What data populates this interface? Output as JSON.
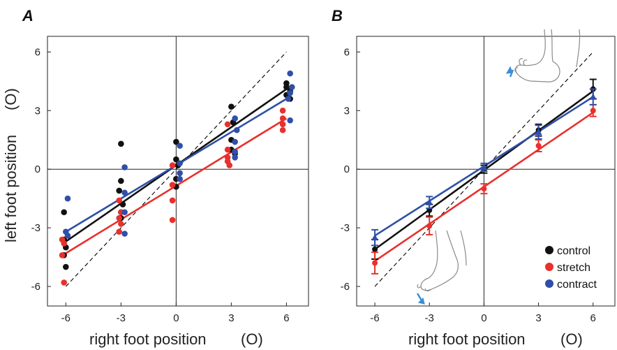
{
  "figure": {
    "ylabel": "left foot position",
    "ylabel_unit": "(O)",
    "xlabel": "right foot position",
    "xlabel_unit": "(O)"
  },
  "colors": {
    "control": "#111111",
    "stretch": "#e8302c",
    "contract": "#2f4fa8",
    "axis": "#222222",
    "icon_arrow": "#3b8fd6"
  },
  "chart_data": [
    {
      "panel": "A",
      "type": "scatter",
      "xlabel": "right foot position",
      "xlabel_unit": "(O)",
      "ylabel": "left foot position",
      "ylabel_unit": "(O)",
      "xlim": [
        -7,
        7.2
      ],
      "ylim": [
        -7,
        6.8
      ],
      "xticks": [
        -6,
        -3,
        0,
        3,
        6
      ],
      "yticks": [
        -6,
        -3,
        0,
        3,
        6
      ],
      "identity_line": true,
      "zero_lines": true,
      "series": [
        {
          "name": "control",
          "color_key": "control",
          "points": [
            [
              -6.1,
              -2.2
            ],
            [
              -6.1,
              -3.6
            ],
            [
              -6.0,
              -4.0
            ],
            [
              -6.1,
              -4.4
            ],
            [
              -6.0,
              -5.0
            ],
            [
              -3.0,
              1.3
            ],
            [
              -3.0,
              -0.6
            ],
            [
              -3.1,
              -1.1
            ],
            [
              -2.9,
              -1.8
            ],
            [
              -3.0,
              -2.2
            ],
            [
              -3.0,
              -2.5
            ],
            [
              0.0,
              1.4
            ],
            [
              0.0,
              0.5
            ],
            [
              0.1,
              0.2
            ],
            [
              0.0,
              -0.5
            ],
            [
              0.0,
              -0.9
            ],
            [
              3.0,
              3.2
            ],
            [
              3.1,
              2.4
            ],
            [
              3.0,
              1.5
            ],
            [
              3.0,
              1.0
            ],
            [
              3.2,
              0.8
            ],
            [
              6.0,
              4.4
            ],
            [
              6.0,
              4.2
            ],
            [
              6.2,
              4.0
            ],
            [
              6.0,
              3.8
            ],
            [
              6.2,
              3.6
            ]
          ],
          "fit": [
            [
              -6,
              -3.7
            ],
            [
              6,
              4.1
            ]
          ]
        },
        {
          "name": "stretch",
          "color_key": "stretch",
          "points": [
            [
              -6.2,
              -3.6
            ],
            [
              -6.1,
              -3.8
            ],
            [
              -6.2,
              -4.4
            ],
            [
              -6.1,
              -5.8
            ],
            [
              -3.1,
              -1.6
            ],
            [
              -3.0,
              -2.2
            ],
            [
              -3.1,
              -2.5
            ],
            [
              -3.0,
              -2.8
            ],
            [
              -3.1,
              -3.2
            ],
            [
              -0.2,
              0.2
            ],
            [
              -0.2,
              -0.8
            ],
            [
              -0.2,
              -1.6
            ],
            [
              -0.2,
              -2.6
            ],
            [
              2.8,
              1.0
            ],
            [
              2.8,
              0.6
            ],
            [
              2.8,
              0.4
            ],
            [
              2.9,
              0.2
            ],
            [
              2.8,
              2.3
            ],
            [
              5.8,
              3.0
            ],
            [
              5.8,
              2.6
            ],
            [
              5.8,
              2.3
            ],
            [
              5.8,
              2.0
            ]
          ],
          "fit": [
            [
              -6,
              -4.3
            ],
            [
              6,
              2.6
            ]
          ]
        },
        {
          "name": "contract",
          "color_key": "contract",
          "points": [
            [
              -5.9,
              -1.5
            ],
            [
              -6.0,
              -3.2
            ],
            [
              -5.9,
              -3.4
            ],
            [
              -2.8,
              0.1
            ],
            [
              -2.8,
              -1.2
            ],
            [
              -2.8,
              -2.2
            ],
            [
              -2.8,
              -3.3
            ],
            [
              0.2,
              1.2
            ],
            [
              0.2,
              0.3
            ],
            [
              0.2,
              -0.2
            ],
            [
              0.2,
              -0.5
            ],
            [
              3.2,
              2.6
            ],
            [
              3.3,
              2.0
            ],
            [
              3.2,
              1.4
            ],
            [
              3.2,
              0.9
            ],
            [
              3.2,
              0.6
            ],
            [
              6.2,
              4.9
            ],
            [
              6.3,
              4.2
            ],
            [
              6.2,
              3.9
            ],
            [
              6.1,
              3.6
            ],
            [
              6.2,
              2.5
            ]
          ],
          "fit": [
            [
              -6,
              -3.2
            ],
            [
              6,
              3.6
            ]
          ]
        }
      ]
    },
    {
      "panel": "B",
      "type": "line",
      "xlabel": "right foot position",
      "xlabel_unit": "(O)",
      "xlim": [
        -7,
        7.2
      ],
      "ylim": [
        -7,
        6.8
      ],
      "xticks": [
        -6,
        -3,
        0,
        3,
        6
      ],
      "yticks": [
        -6,
        -3,
        0,
        3,
        6
      ],
      "identity_line": true,
      "zero_lines": true,
      "legend_position": "bottom-right",
      "series": [
        {
          "name": "control",
          "color_key": "control",
          "marker": "circle",
          "x": [
            -6,
            -3,
            0,
            3,
            6
          ],
          "y": [
            -4.1,
            -2.1,
            0.0,
            2.0,
            4.1
          ],
          "err": [
            0.5,
            0.3,
            0.2,
            0.3,
            0.5
          ],
          "fit": [
            [
              -6,
              -4.1
            ],
            [
              6,
              4.0
            ]
          ]
        },
        {
          "name": "stretch",
          "color_key": "stretch",
          "marker": "circle",
          "x": [
            -6,
            -3,
            0,
            3,
            6
          ],
          "y": [
            -4.8,
            -2.9,
            -1.0,
            1.2,
            3.0
          ],
          "err": [
            0.55,
            0.45,
            0.25,
            0.3,
            0.3
          ],
          "fit": [
            [
              -6,
              -4.7
            ],
            [
              6,
              2.9
            ]
          ]
        },
        {
          "name": "contract",
          "color_key": "contract",
          "marker": "triangle",
          "x": [
            -6,
            -3,
            0,
            3,
            6
          ],
          "y": [
            -3.5,
            -1.7,
            0.1,
            1.9,
            3.7
          ],
          "err": [
            0.4,
            0.3,
            0.2,
            0.35,
            0.4
          ],
          "fit": [
            [
              -6,
              -3.4
            ],
            [
              6,
              3.7
            ]
          ]
        }
      ]
    }
  ],
  "icons": {
    "top": "foot-toes-up-icon",
    "bottom": "foot-toes-down-icon"
  }
}
